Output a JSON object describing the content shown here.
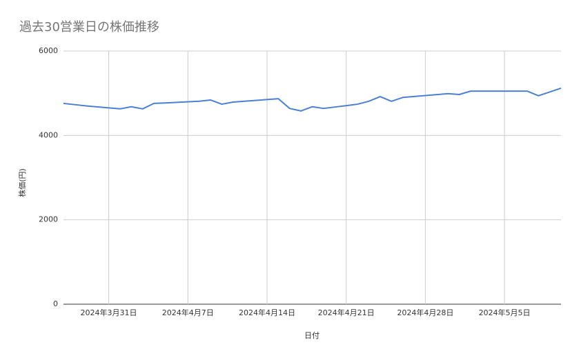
{
  "chart_data": {
    "type": "line",
    "title": "過去30営業日の株価推移",
    "x_label": "日付",
    "y_label": "株価(円)",
    "x": [
      "2024-03-27",
      "2024-03-28",
      "2024-03-29",
      "2024-04-01",
      "2024-04-02",
      "2024-04-03",
      "2024-04-04",
      "2024-04-05",
      "2024-04-08",
      "2024-04-09",
      "2024-04-10",
      "2024-04-11",
      "2024-04-12",
      "2024-04-15",
      "2024-04-16",
      "2024-04-17",
      "2024-04-18",
      "2024-04-19",
      "2024-04-22",
      "2024-04-23",
      "2024-04-24",
      "2024-04-25",
      "2024-04-26",
      "2024-04-30",
      "2024-05-01",
      "2024-05-02",
      "2024-05-07",
      "2024-05-08",
      "2024-05-09",
      "2024-05-10"
    ],
    "series": [
      {
        "name": "株価",
        "color": "#4a7fd6",
        "values": [
          4760,
          4730,
          4700,
          4630,
          4680,
          4630,
          4760,
          4770,
          4810,
          4840,
          4740,
          4790,
          4810,
          4870,
          4640,
          4580,
          4680,
          4640,
          4740,
          4810,
          4920,
          4810,
          4900,
          4990,
          4970,
          5050,
          5050,
          4940,
          5030,
          5120
        ]
      }
    ],
    "xlim": [
      "2024-03-27",
      "2024-05-10"
    ],
    "xticks": [
      {
        "value": "2024-03-31",
        "label": "2024年3月31日"
      },
      {
        "value": "2024-04-07",
        "label": "2024年4月7日"
      },
      {
        "value": "2024-04-14",
        "label": "2024年4月14日"
      },
      {
        "value": "2024-04-21",
        "label": "2024年4月21日"
      },
      {
        "value": "2024-04-28",
        "label": "2024年4月28日"
      },
      {
        "value": "2024-05-05",
        "label": "2024年5月5日"
      }
    ],
    "ylim": [
      0,
      6000
    ],
    "yticks": [
      0,
      2000,
      4000,
      6000
    ],
    "grid": true
  }
}
